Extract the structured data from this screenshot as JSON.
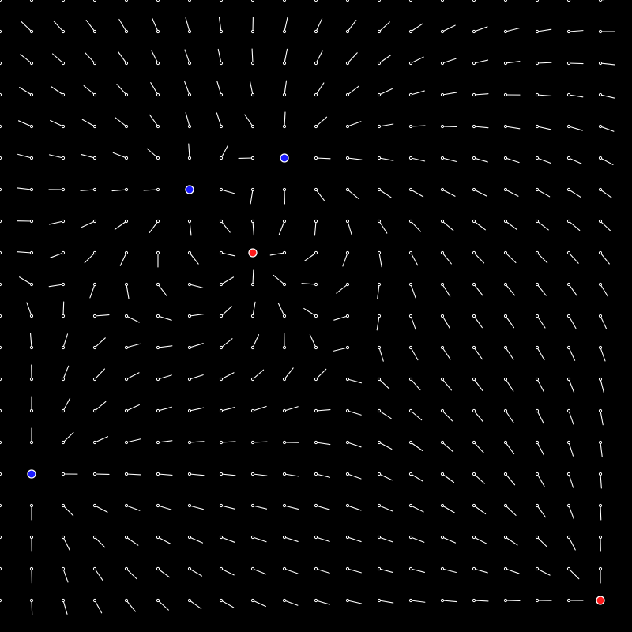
{
  "field": {
    "grid": {
      "columns": 20,
      "rows": 20
    },
    "colors": {
      "background": "#000000",
      "line": "#ffffff",
      "positive_charge": "#ff1a1a",
      "negative_charge": "#1a1aff"
    }
  },
  "charges": [
    {
      "id": "negative-charge-1",
      "sign": "negative",
      "strength": -1,
      "cell": [
        9,
        5
      ]
    },
    {
      "id": "negative-charge-2",
      "sign": "negative",
      "strength": -1,
      "cell": [
        6,
        6
      ]
    },
    {
      "id": "positive-charge-1",
      "sign": "positive",
      "strength": 1,
      "cell": [
        8,
        8
      ]
    },
    {
      "id": "negative-charge-3",
      "sign": "negative",
      "strength": -1,
      "cell": [
        1,
        15
      ]
    },
    {
      "id": "positive-charge-2",
      "sign": "positive",
      "strength": 1,
      "cell": [
        19,
        19
      ]
    }
  ]
}
